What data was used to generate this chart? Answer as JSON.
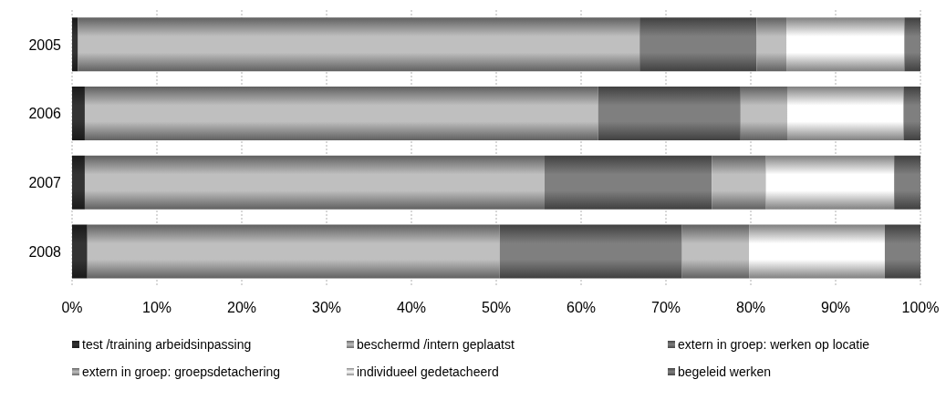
{
  "chart_data": {
    "type": "bar",
    "orientation": "horizontal",
    "stacked": true,
    "categories": [
      "2005",
      "2006",
      "2007",
      "2008"
    ],
    "series": [
      {
        "name": "test /training arbeidsinpassing",
        "color": "#333333",
        "values": [
          0.7,
          1.5,
          1.5,
          1.8
        ]
      },
      {
        "name": "beschermd /intern geplaatst",
        "color": "#bfbfbf",
        "values": [
          66.2,
          60.5,
          54.2,
          48.6
        ]
      },
      {
        "name": "extern in groep: werken op locatie",
        "color": "#7f7f7f",
        "values": [
          13.8,
          16.8,
          19.7,
          21.5
        ]
      },
      {
        "name": "extern in groep: groepsdetachering",
        "color": "#bfbfbf",
        "values": [
          3.5,
          5.5,
          6.4,
          7.9
        ]
      },
      {
        "name": "individueel gedetacheerd",
        "color": "#ffffff",
        "values": [
          13.9,
          13.7,
          15.1,
          16.0
        ]
      },
      {
        "name": "begeleid werken",
        "color": "#7f7f7f",
        "values": [
          1.9,
          2.0,
          3.1,
          4.2
        ]
      }
    ],
    "xlim": [
      0,
      100
    ],
    "xticks": [
      {
        "value": 0,
        "label": "0%"
      },
      {
        "value": 10,
        "label": "10%"
      },
      {
        "value": 20,
        "label": "20%"
      },
      {
        "value": 30,
        "label": "30%"
      },
      {
        "value": 40,
        "label": "40%"
      },
      {
        "value": 50,
        "label": "50%"
      },
      {
        "value": 60,
        "label": "60%"
      },
      {
        "value": 70,
        "label": "70%"
      },
      {
        "value": 80,
        "label": "80%"
      },
      {
        "value": 90,
        "label": "90%"
      },
      {
        "value": 100,
        "label": "100%"
      }
    ],
    "grid": "x",
    "legend": "bottom"
  }
}
